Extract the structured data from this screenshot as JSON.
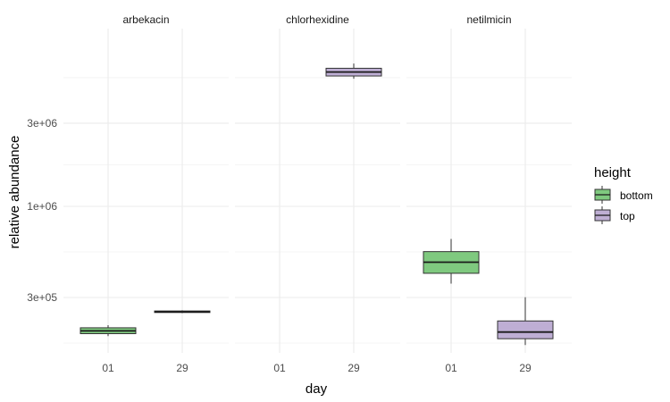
{
  "chart_data": {
    "type": "boxplot",
    "facets": [
      "arbekacin",
      "chlorhexidine",
      "netilmicin"
    ],
    "x_categories": [
      "01",
      "29"
    ],
    "xlabel": "day",
    "ylabel": "relative abundance",
    "y_scale": "log10",
    "y_ticks": [
      {
        "value": 300000,
        "label": "3e+05"
      },
      {
        "value": 1000000,
        "label": "1e+06"
      },
      {
        "value": 3000000,
        "label": "3e+06"
      }
    ],
    "ylim": [
      95000,
      8000000
    ],
    "grid": true,
    "legend": {
      "title": "height",
      "position": "right",
      "entries": [
        {
          "name": "bottom",
          "color": "#7fc97f"
        },
        {
          "name": "top",
          "color": "#beaed4"
        }
      ]
    },
    "boxes": [
      {
        "facet": "arbekacin",
        "day": "01",
        "height": "bottom",
        "min": 180000,
        "q1": 186000,
        "median": 193000,
        "q3": 201000,
        "max": 208000
      },
      {
        "facet": "arbekacin",
        "day": "29",
        "height": "top",
        "min": 244000,
        "q1": 246000,
        "median": 248000,
        "q3": 251000,
        "max": 253000
      },
      {
        "facet": "chlorhexidine",
        "day": "29",
        "height": "top",
        "min": 5400000,
        "q1": 5600000,
        "median": 5900000,
        "q3": 6200000,
        "max": 6600000
      },
      {
        "facet": "netilmicin",
        "day": "01",
        "height": "bottom",
        "min": 360000,
        "q1": 413000,
        "median": 478000,
        "q3": 550000,
        "max": 650000
      },
      {
        "facet": "netilmicin",
        "day": "29",
        "height": "top",
        "min": 160000,
        "q1": 174000,
        "median": 190000,
        "q3": 220000,
        "max": 301000
      }
    ]
  }
}
